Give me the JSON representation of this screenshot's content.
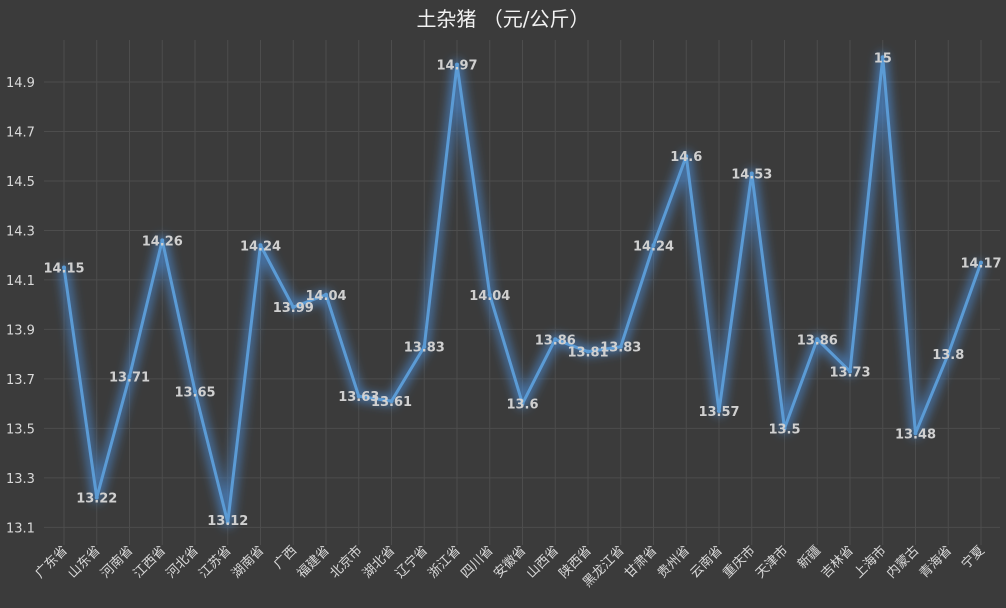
{
  "chart_data": {
    "type": "line",
    "title": "土杂猪 （元/公斤）",
    "xlabel": "",
    "ylabel": "",
    "ylim": [
      13.1,
      15.0
    ],
    "yticks": [
      "13.1",
      "13.3",
      "13.5",
      "13.7",
      "13.9",
      "14.1",
      "14.3",
      "14.5",
      "14.7",
      "14.9"
    ],
    "grid": true,
    "legend": "none",
    "colors": {
      "background": "#3b3b3b",
      "line": "#5b9bd5",
      "glow": "#4a86c8",
      "grid": "#4d4d4d",
      "text": "#d9d9d9"
    },
    "categories": [
      "广东省",
      "山东省",
      "河南省",
      "江西省",
      "河北省",
      "江苏省",
      "湖南省",
      "广西",
      "福建省",
      "北京市",
      "湖北省",
      "辽宁省",
      "浙江省",
      "四川省",
      "安徽省",
      "山西省",
      "陕西省",
      "黑龙江省",
      "甘肃省",
      "贵州省",
      "云南省",
      "重庆市",
      "天津市",
      "新疆",
      "吉林省",
      "上海市",
      "内蒙古",
      "青海省",
      "宁夏"
    ],
    "values": [
      14.15,
      13.22,
      13.71,
      14.26,
      13.65,
      13.12,
      14.24,
      13.99,
      14.04,
      13.63,
      13.61,
      13.83,
      14.97,
      14.04,
      13.6,
      13.86,
      13.81,
      13.83,
      14.24,
      14.6,
      13.57,
      14.53,
      13.5,
      13.86,
      13.73,
      15,
      13.48,
      13.8,
      14.17
    ],
    "data_labels": [
      "14.15",
      "13.22",
      "13.71",
      "14.26",
      "13.65",
      "13.12",
      "14.24",
      "13.99",
      "14.04",
      "13.63",
      "13.61",
      "13.83",
      "14.97",
      "14.04",
      "13.6",
      "13.86",
      "13.81",
      "13.83",
      "14.24",
      "14.6",
      "13.57",
      "14.53",
      "13.5",
      "13.86",
      "13.73",
      "15",
      "13.48",
      "13.8",
      "14.17"
    ]
  }
}
